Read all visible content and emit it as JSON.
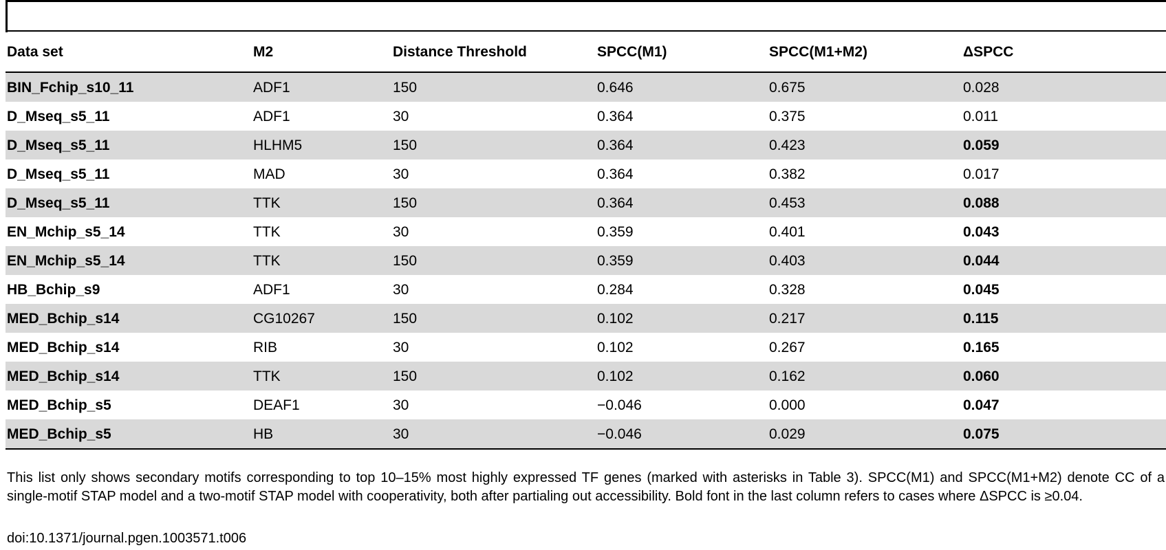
{
  "table": {
    "headers": [
      "Data set",
      "M2",
      "Distance Threshold",
      "SPCC(M1)",
      "SPCC(M1+M2)",
      "ΔSPCC"
    ],
    "rows": [
      {
        "data_set": "BIN_Fchip_s10_11",
        "m2": "ADF1",
        "distance": "150",
        "spcc_m1": "0.646",
        "spcc_m1m2": "0.675",
        "delta": "0.028",
        "delta_bold": false
      },
      {
        "data_set": "D_Mseq_s5_11",
        "m2": "ADF1",
        "distance": "30",
        "spcc_m1": "0.364",
        "spcc_m1m2": "0.375",
        "delta": "0.011",
        "delta_bold": false
      },
      {
        "data_set": "D_Mseq_s5_11",
        "m2": "HLHM5",
        "distance": "150",
        "spcc_m1": "0.364",
        "spcc_m1m2": "0.423",
        "delta": "0.059",
        "delta_bold": true
      },
      {
        "data_set": "D_Mseq_s5_11",
        "m2": "MAD",
        "distance": "30",
        "spcc_m1": "0.364",
        "spcc_m1m2": "0.382",
        "delta": "0.017",
        "delta_bold": false
      },
      {
        "data_set": "D_Mseq_s5_11",
        "m2": "TTK",
        "distance": "150",
        "spcc_m1": "0.364",
        "spcc_m1m2": "0.453",
        "delta": "0.088",
        "delta_bold": true
      },
      {
        "data_set": "EN_Mchip_s5_14",
        "m2": "TTK",
        "distance": "30",
        "spcc_m1": "0.359",
        "spcc_m1m2": "0.401",
        "delta": "0.043",
        "delta_bold": true
      },
      {
        "data_set": "EN_Mchip_s5_14",
        "m2": "TTK",
        "distance": "150",
        "spcc_m1": "0.359",
        "spcc_m1m2": "0.403",
        "delta": "0.044",
        "delta_bold": true
      },
      {
        "data_set": "HB_Bchip_s9",
        "m2": "ADF1",
        "distance": "30",
        "spcc_m1": "0.284",
        "spcc_m1m2": "0.328",
        "delta": "0.045",
        "delta_bold": true
      },
      {
        "data_set": "MED_Bchip_s14",
        "m2": "CG10267",
        "distance": "150",
        "spcc_m1": "0.102",
        "spcc_m1m2": "0.217",
        "delta": "0.115",
        "delta_bold": true
      },
      {
        "data_set": "MED_Bchip_s14",
        "m2": "RIB",
        "distance": "30",
        "spcc_m1": "0.102",
        "spcc_m1m2": "0.267",
        "delta": "0.165",
        "delta_bold": true
      },
      {
        "data_set": "MED_Bchip_s14",
        "m2": "TTK",
        "distance": "150",
        "spcc_m1": "0.102",
        "spcc_m1m2": "0.162",
        "delta": "0.060",
        "delta_bold": true
      },
      {
        "data_set": "MED_Bchip_s5",
        "m2": "DEAF1",
        "distance": "30",
        "spcc_m1": "−0.046",
        "spcc_m1m2": "0.000",
        "delta": "0.047",
        "delta_bold": true
      },
      {
        "data_set": "MED_Bchip_s5",
        "m2": "HB",
        "distance": "30",
        "spcc_m1": "−0.046",
        "spcc_m1m2": "0.029",
        "delta": "0.075",
        "delta_bold": true
      }
    ]
  },
  "footnote": "This list only shows secondary motifs corresponding to top 10–15% most highly expressed TF genes (marked with asterisks in Table 3). SPCC(M1) and SPCC(M1+M2) denote CC of a single-motif STAP model and a two-motif STAP model with cooperativity, both after partialing out accessibility. Bold font in the last column refers to cases where ΔSPCC is ≥0.04.",
  "doi": "doi:10.1371/journal.pgen.1003571.t006"
}
